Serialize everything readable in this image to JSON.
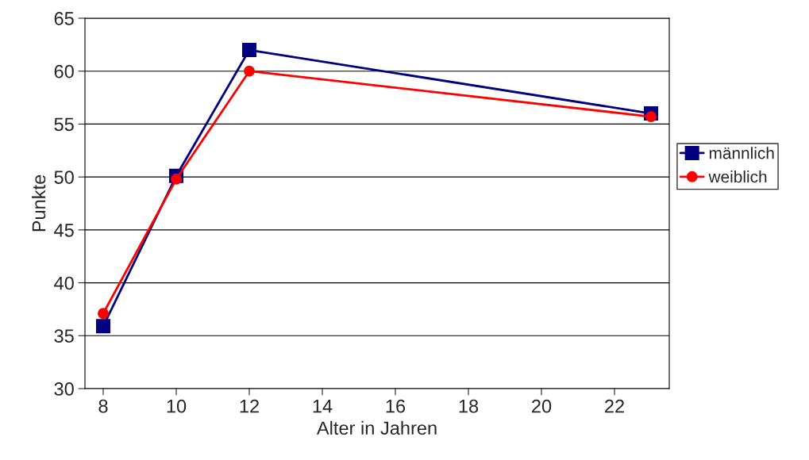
{
  "chart_data": {
    "type": "line",
    "xlabel": "Alter in Jahren",
    "ylabel": "Punkte",
    "x": [
      8,
      10,
      12,
      23
    ],
    "series": [
      {
        "name": "männlich",
        "color": "#000080",
        "values": [
          35.9,
          50.1,
          62.0,
          56.0
        ],
        "marker": "square"
      },
      {
        "name": "weiblich",
        "color": "#ff0000",
        "values": [
          37.1,
          49.8,
          60.0,
          55.7
        ],
        "marker": "circle"
      }
    ],
    "xlim": [
      7.5,
      23.5
    ],
    "xticks": [
      8,
      10,
      12,
      14,
      16,
      18,
      20,
      22
    ],
    "ylim": [
      30,
      65
    ],
    "yticks": [
      30,
      35,
      40,
      45,
      50,
      55,
      60,
      65
    ],
    "grid": "y",
    "legend": "right"
  }
}
